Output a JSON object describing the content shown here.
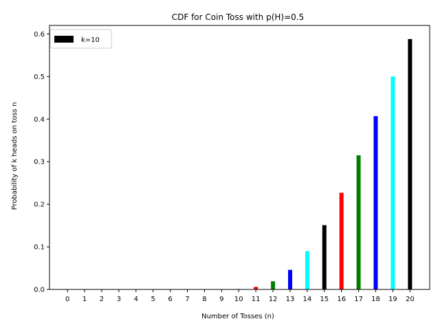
{
  "chart_data": {
    "type": "bar",
    "title": "CDF for Coin Toss with p(H)=0.5",
    "xlabel": "Number of Tosses (n)",
    "ylabel": "Probability of k heads on toss n",
    "x": [
      0,
      1,
      2,
      3,
      4,
      5,
      6,
      7,
      8,
      9,
      10,
      11,
      12,
      13,
      14,
      15,
      16,
      17,
      18,
      19,
      20
    ],
    "values": [
      0,
      0,
      0,
      0,
      0,
      0,
      0,
      0,
      0,
      0,
      0.001,
      0.006,
      0.019,
      0.046,
      0.09,
      0.151,
      0.227,
      0.315,
      0.407,
      0.5,
      0.588
    ],
    "bar_colors": [
      "#000000",
      "#ff0000",
      "#008000",
      "#0000ff",
      "#00ffff"
    ],
    "ylim": [
      0,
      0.62
    ],
    "yticks": [
      0.0,
      0.1,
      0.2,
      0.3,
      0.4,
      0.5,
      0.6
    ],
    "ytick_labels": [
      "0.0",
      "0.1",
      "0.2",
      "0.3",
      "0.4",
      "0.5",
      "0.6"
    ],
    "grid": false,
    "legend": {
      "placement": "top-left",
      "entries": [
        {
          "label": "k=10",
          "color": "#000000"
        }
      ]
    }
  }
}
